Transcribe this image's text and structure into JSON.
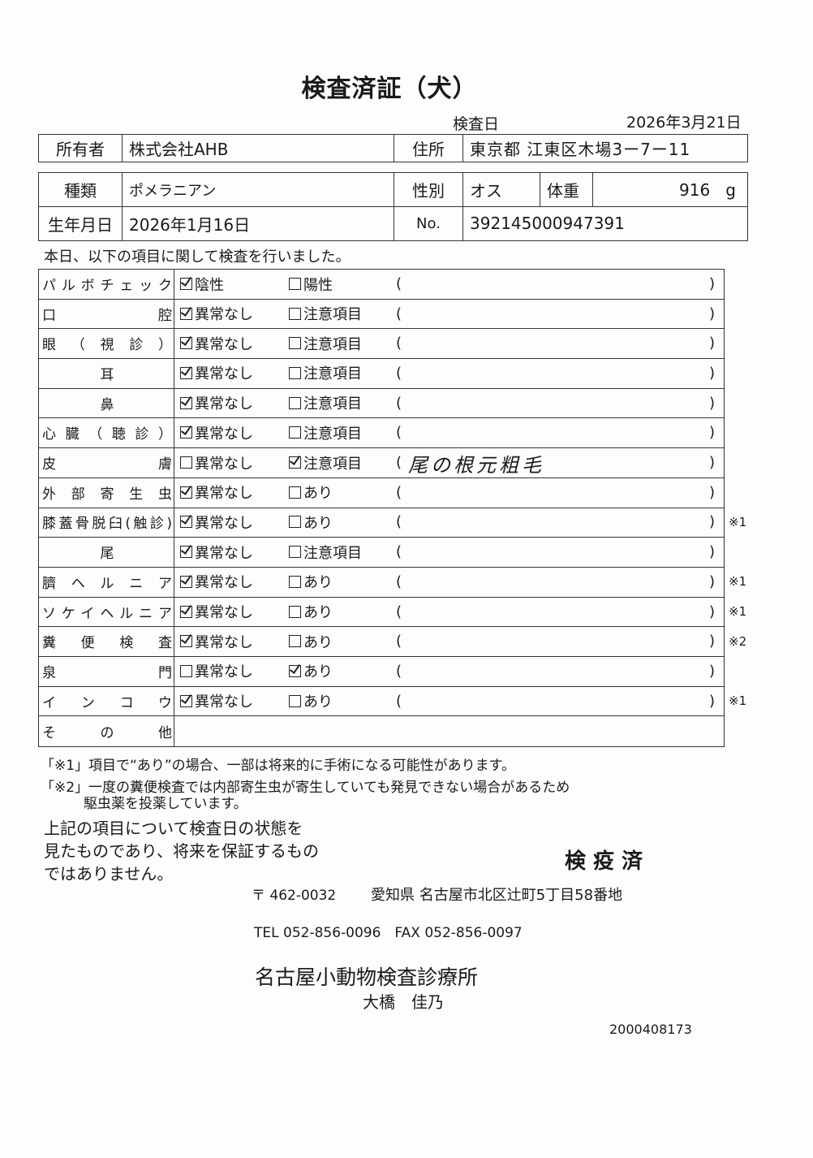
{
  "title": "検査済証（犬）",
  "exam_date_label": "検査日",
  "exam_date": "2026年3月21日",
  "owner": {
    "label": "所有者",
    "value": "株式会社AHB"
  },
  "address": {
    "label": "住所",
    "value": "東京都 江東区木場3ー7ー11"
  },
  "breed": {
    "label": "種類",
    "value": "ポメラニアン"
  },
  "sex": {
    "label": "性別",
    "value": "オス"
  },
  "weight": {
    "label": "体重",
    "value": "916",
    "unit": "g"
  },
  "birth": {
    "label": "生年月日",
    "value": "2026年1月16日"
  },
  "number": {
    "label": "No.",
    "value": "392145000947391"
  },
  "intro": "本日、以下の項目に関して検査を行いました。",
  "paren_open": "(",
  "paren_close": ")",
  "rows": [
    {
      "label": "パルボチェック",
      "opt1": "陰性",
      "opt2": "陽性",
      "checked": 1,
      "note": "",
      "mark": ""
    },
    {
      "label": "口腔",
      "opt1": "異常なし",
      "opt2": "注意項目",
      "checked": 1,
      "note": "",
      "mark": ""
    },
    {
      "label": "眼（視診）",
      "opt1": "異常なし",
      "opt2": "注意項目",
      "checked": 1,
      "note": "",
      "mark": ""
    },
    {
      "label": "耳",
      "opt1": "異常なし",
      "opt2": "注意項目",
      "checked": 1,
      "note": "",
      "mark": "",
      "center": true
    },
    {
      "label": "鼻",
      "opt1": "異常なし",
      "opt2": "注意項目",
      "checked": 1,
      "note": "",
      "mark": "",
      "center": true
    },
    {
      "label": "心臓（聴診）",
      "opt1": "異常なし",
      "opt2": "注意項目",
      "checked": 1,
      "note": "",
      "mark": ""
    },
    {
      "label": "皮膚",
      "opt1": "異常なし",
      "opt2": "注意項目",
      "checked": 2,
      "note": "尾の根元粗毛",
      "mark": ""
    },
    {
      "label": "外部寄生虫",
      "opt1": "異常なし",
      "opt2": "あり",
      "checked": 1,
      "note": "",
      "mark": ""
    },
    {
      "label": "膝蓋骨脱臼(触診)",
      "opt1": "異常なし",
      "opt2": "あり",
      "checked": 1,
      "note": "",
      "mark": "※1"
    },
    {
      "label": "尾",
      "opt1": "異常なし",
      "opt2": "注意項目",
      "checked": 1,
      "note": "",
      "mark": "",
      "center": true
    },
    {
      "label": "臍ヘルニア",
      "opt1": "異常なし",
      "opt2": "あり",
      "checked": 1,
      "note": "",
      "mark": "※1"
    },
    {
      "label": "ソケイヘルニア",
      "opt1": "異常なし",
      "opt2": "あり",
      "checked": 1,
      "note": "",
      "mark": "※1"
    },
    {
      "label": "糞便検査",
      "opt1": "異常なし",
      "opt2": "あり",
      "checked": 1,
      "note": "",
      "mark": "※2"
    },
    {
      "label": "泉門",
      "opt1": "異常なし",
      "opt2": "あり",
      "checked": 2,
      "note": "",
      "mark": ""
    },
    {
      "label": "インコウ",
      "opt1": "異常なし",
      "opt2": "あり",
      "checked": 1,
      "note": "",
      "mark": "※1"
    }
  ],
  "other_label": "その他",
  "footnote1": "「※1」項目で“あり”の場合、一部は将来的に手術になる可能性があります。",
  "footnote2a": "「※2」一度の糞便検査では内部寄生虫が寄生していても発見できない場合があるため",
  "footnote2b": "駆虫薬を投薬しています。",
  "disclaimer": [
    "上記の項目について検査日の状態を",
    "見たものであり、将来を保証するもの",
    "ではありません。"
  ],
  "stamp": "検 疫 済",
  "postal": "〒 462-0032",
  "clinic_address": "愛知県 名古屋市北区辻町5丁目58番地",
  "phone": "TEL 052-856-0096　FAX 052-856-0097",
  "clinic_name": "名古屋小動物検査診療所",
  "doctor": "大橋　佳乃",
  "doc_id": "2000408173"
}
